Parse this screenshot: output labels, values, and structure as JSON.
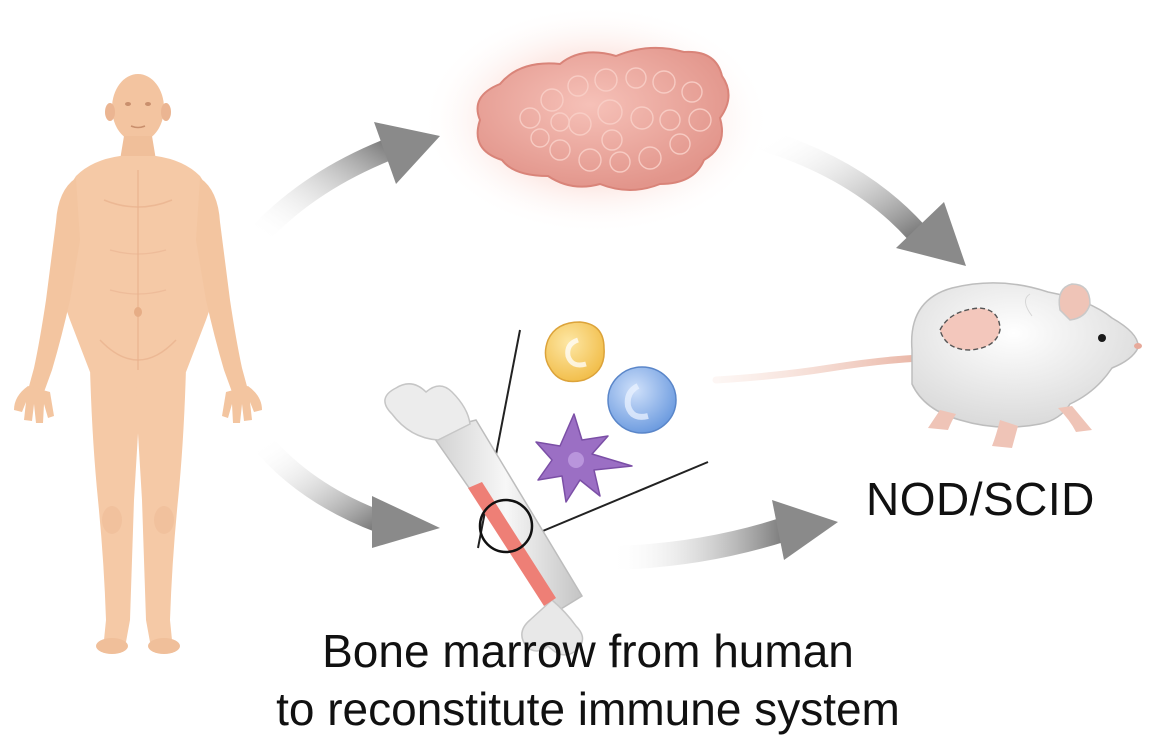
{
  "labels": {
    "mouse_strain": "NOD/SCID",
    "caption_line1": "Bone marrow from human",
    "caption_line2": "to reconstitute immune system"
  },
  "colors": {
    "skin": "#f5c9a6",
    "skin_shadow": "#e6ad86",
    "tumor": "#eea69d",
    "tumor_glow": "#fbd9d2",
    "arrow": "#8c8c8c",
    "bone": "#e9e9e9",
    "marrow": "#ee7f76",
    "cell_yellow": "#f6cd6b",
    "cell_blue": "#8fb4ea",
    "cell_purple": "#9b6fc4",
    "mouse": "#efefef",
    "mouse_pink": "#eec3b6"
  },
  "icons": [
    "human-body-icon",
    "tumor-icon",
    "bone-icon",
    "immune-cell-icon",
    "dendritic-cell-icon",
    "mouse-icon",
    "arrow-icon"
  ]
}
